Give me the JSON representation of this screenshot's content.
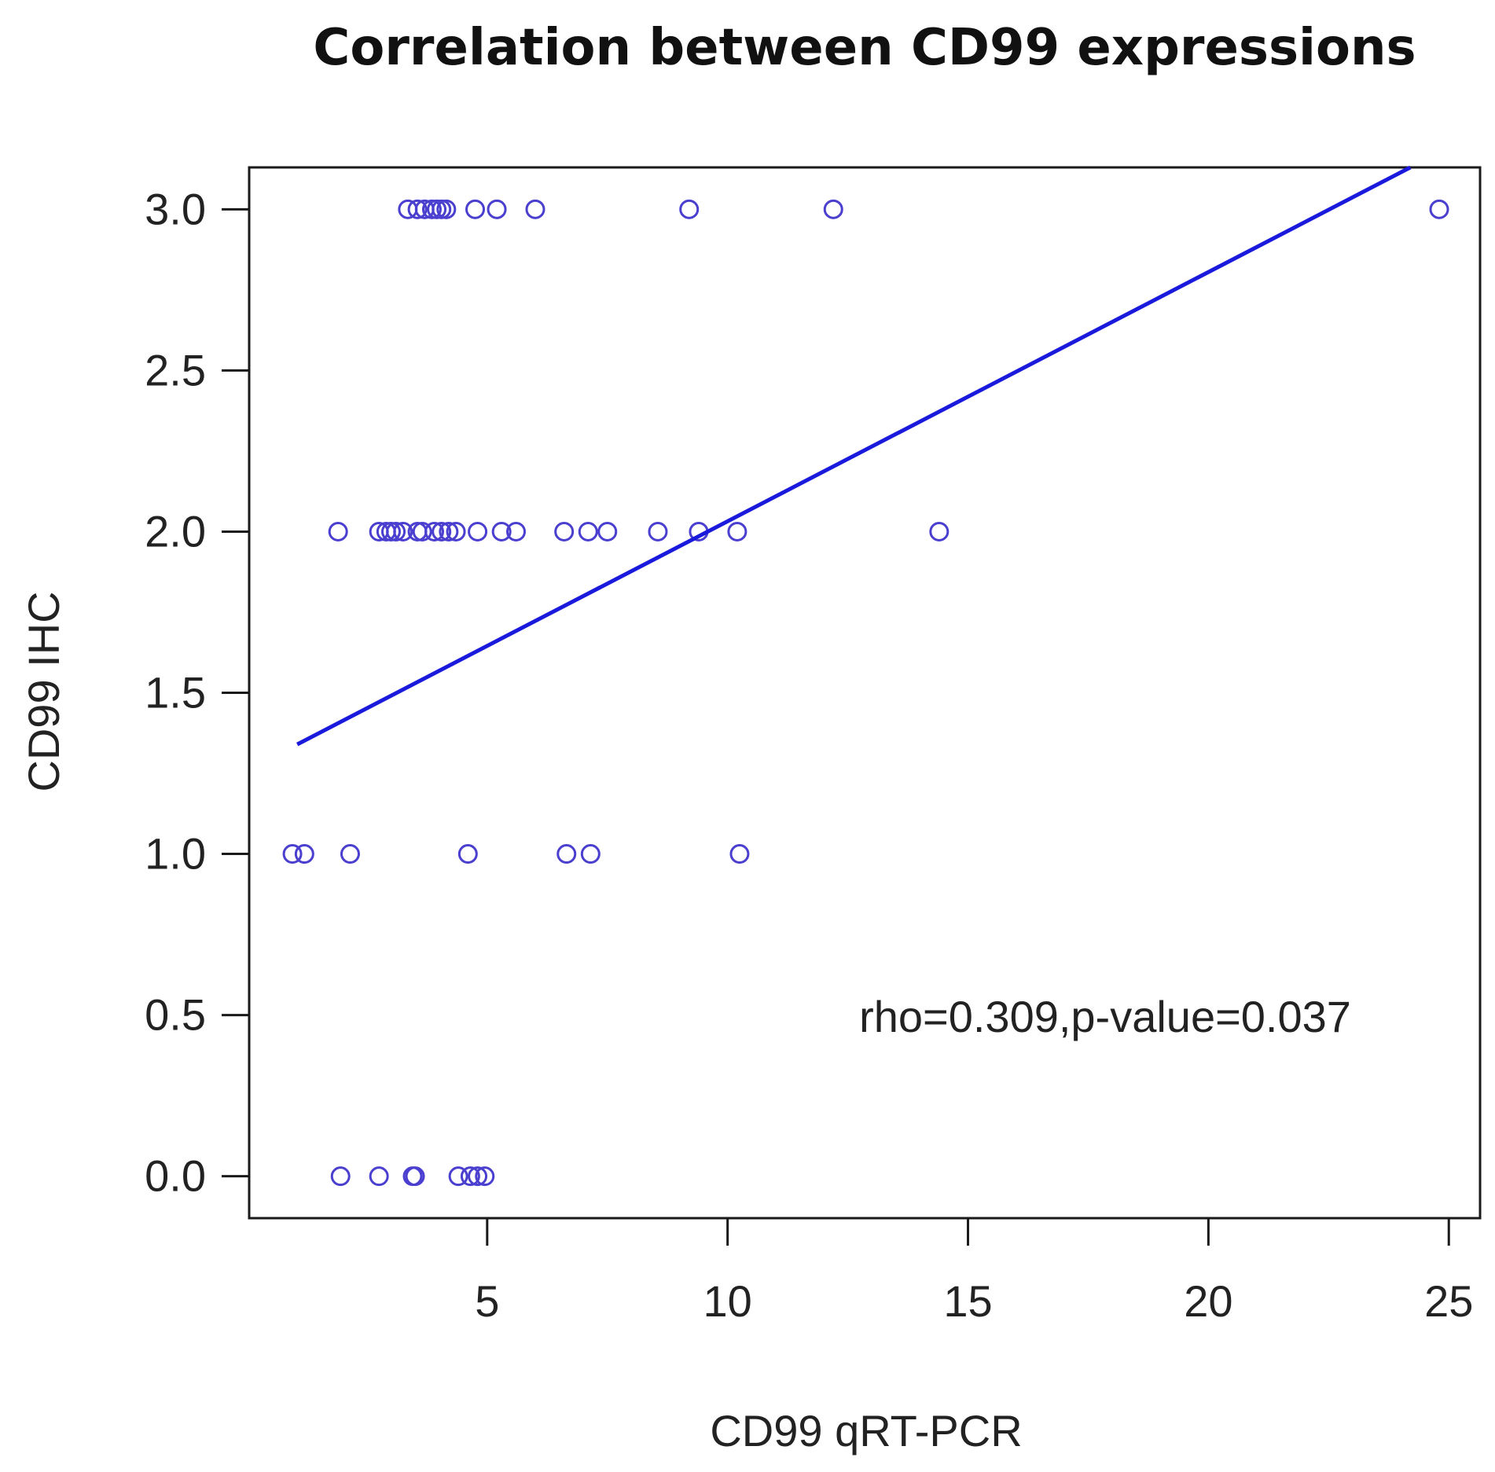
{
  "chart_data": {
    "type": "scatter",
    "title": "Correlation between CD99 expressions",
    "xlabel": "CD99 qRT-PCR",
    "ylabel": "CD99 IHC",
    "xlim": [
      0.05,
      25.65
    ],
    "ylim": [
      -0.13,
      3.13
    ],
    "x_ticks": [
      5,
      10,
      15,
      20,
      25
    ],
    "x_tick_labels": [
      "5",
      "10",
      "15",
      "20",
      "25"
    ],
    "y_ticks": [
      0.0,
      0.5,
      1.0,
      1.5,
      2.0,
      2.5,
      3.0
    ],
    "y_tick_labels": [
      "0.0",
      "0.5",
      "1.0",
      "1.5",
      "2.0",
      "2.5",
      "3.0"
    ],
    "annotation": "rho=0.309,p-value=0.037",
    "point_color": "#4a3fcf",
    "line_color": "#1a1adc",
    "fit_line": {
      "x": [
        1.05,
        24.2
      ],
      "y": [
        1.34,
        3.13
      ]
    },
    "points": {
      "x": [
        3.35,
        3.55,
        3.7,
        3.85,
        3.95,
        4.05,
        4.15,
        4.75,
        5.2,
        6.0,
        9.2,
        12.2,
        24.8,
        1.9,
        2.75,
        2.9,
        3.0,
        3.1,
        3.25,
        3.55,
        3.65,
        3.9,
        4.05,
        4.2,
        4.35,
        4.8,
        5.3,
        5.6,
        6.6,
        7.1,
        7.5,
        8.55,
        9.4,
        10.2,
        14.4,
        0.95,
        1.2,
        2.15,
        4.6,
        6.65,
        7.15,
        10.25,
        1.95,
        2.75,
        3.45,
        3.5,
        4.4,
        4.65,
        4.8,
        4.95
      ],
      "y": [
        3,
        3,
        3,
        3,
        3,
        3,
        3,
        3,
        3,
        3,
        3,
        3,
        3,
        2,
        2,
        2,
        2,
        2,
        2,
        2,
        2,
        2,
        2,
        2,
        2,
        2,
        2,
        2,
        2,
        2,
        2,
        2,
        2,
        2,
        2,
        1,
        1,
        1,
        1,
        1,
        1,
        1,
        0,
        0,
        0,
        0,
        0,
        0,
        0,
        0
      ]
    }
  }
}
